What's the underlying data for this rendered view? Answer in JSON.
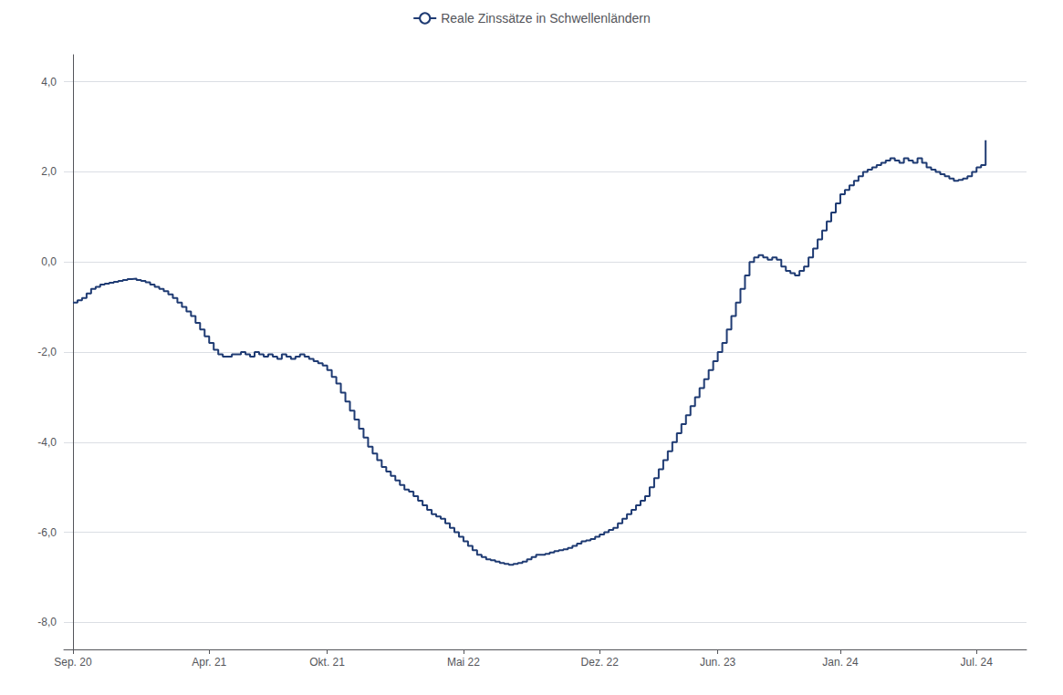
{
  "chart_data": {
    "type": "line",
    "line_style": "step",
    "legend": "top",
    "grid": true,
    "x": [
      0,
      1,
      2,
      3,
      4,
      5,
      6,
      7,
      8,
      9,
      10,
      11,
      12,
      13,
      14,
      15,
      16,
      17,
      18,
      19,
      20,
      21,
      22,
      23,
      24,
      25,
      26,
      27,
      28,
      29,
      30,
      31,
      32,
      33,
      34,
      35,
      36,
      37,
      38,
      39,
      40,
      41,
      42,
      43,
      44,
      45,
      46,
      47,
      48,
      49,
      50,
      51,
      52,
      53,
      54,
      55,
      56,
      57,
      58,
      59,
      60,
      61,
      62,
      63,
      64,
      65,
      66,
      67,
      68,
      69,
      70,
      71,
      72,
      73,
      74,
      75,
      76,
      77,
      78,
      79,
      80,
      81,
      82,
      83,
      84,
      85,
      86,
      87,
      88,
      89,
      90,
      91,
      92,
      93,
      94,
      95,
      96,
      97,
      98,
      99,
      100,
      101,
      102,
      103,
      104,
      105,
      106,
      107,
      108,
      109,
      110,
      111,
      112,
      113,
      114,
      115,
      116,
      117,
      118,
      119,
      120,
      121,
      122,
      123,
      124,
      125,
      126,
      127,
      128,
      129,
      130,
      131,
      132,
      133,
      134,
      135,
      136,
      137,
      138,
      139,
      140,
      141,
      142,
      143,
      144,
      145,
      146,
      147,
      148,
      149,
      150,
      151,
      152,
      153,
      154,
      155,
      156,
      157,
      158,
      159,
      160,
      161,
      162,
      163,
      164,
      165,
      166,
      167,
      168,
      169,
      170,
      171,
      172,
      173,
      174,
      175,
      176,
      177,
      178,
      179,
      180,
      181,
      182,
      183,
      184,
      185,
      186,
      187,
      188,
      189,
      190,
      191,
      192,
      193,
      194,
      195,
      196,
      197,
      198,
      199,
      200,
      201
    ],
    "series": [
      {
        "name": "Reale Zinssätze in Schwellenländern",
        "color": "#1f3b73",
        "values": [
          -0.9,
          -0.85,
          -0.8,
          -0.7,
          -0.6,
          -0.55,
          -0.5,
          -0.48,
          -0.46,
          -0.44,
          -0.42,
          -0.4,
          -0.38,
          -0.37,
          -0.4,
          -0.42,
          -0.45,
          -0.5,
          -0.55,
          -0.6,
          -0.65,
          -0.72,
          -0.8,
          -0.9,
          -1.0,
          -1.1,
          -1.2,
          -1.35,
          -1.5,
          -1.65,
          -1.8,
          -1.95,
          -2.05,
          -2.1,
          -2.1,
          -2.05,
          -2.05,
          -2.0,
          -2.05,
          -2.1,
          -2.0,
          -2.05,
          -2.1,
          -2.05,
          -2.1,
          -2.15,
          -2.05,
          -2.1,
          -2.15,
          -2.1,
          -2.05,
          -2.1,
          -2.15,
          -2.2,
          -2.25,
          -2.3,
          -2.4,
          -2.55,
          -2.7,
          -2.9,
          -3.1,
          -3.3,
          -3.5,
          -3.7,
          -3.9,
          -4.1,
          -4.25,
          -4.4,
          -4.55,
          -4.65,
          -4.75,
          -4.85,
          -4.95,
          -5.05,
          -5.1,
          -5.2,
          -5.3,
          -5.4,
          -5.5,
          -5.6,
          -5.65,
          -5.7,
          -5.8,
          -5.9,
          -6.0,
          -6.1,
          -6.2,
          -6.3,
          -6.4,
          -6.5,
          -6.55,
          -6.6,
          -6.62,
          -6.65,
          -6.68,
          -6.7,
          -6.72,
          -6.7,
          -6.68,
          -6.65,
          -6.6,
          -6.55,
          -6.5,
          -6.5,
          -6.48,
          -6.45,
          -6.42,
          -6.4,
          -6.38,
          -6.35,
          -6.3,
          -6.25,
          -6.2,
          -6.18,
          -6.15,
          -6.1,
          -6.05,
          -6.0,
          -5.95,
          -5.9,
          -5.8,
          -5.7,
          -5.6,
          -5.5,
          -5.4,
          -5.3,
          -5.2,
          -5.0,
          -4.8,
          -4.6,
          -4.4,
          -4.2,
          -4.0,
          -3.8,
          -3.6,
          -3.4,
          -3.2,
          -3.0,
          -2.8,
          -2.6,
          -2.4,
          -2.2,
          -2.0,
          -1.8,
          -1.5,
          -1.2,
          -0.9,
          -0.6,
          -0.3,
          0.0,
          0.1,
          0.15,
          0.1,
          0.05,
          0.1,
          0.05,
          -0.1,
          -0.2,
          -0.25,
          -0.3,
          -0.2,
          -0.1,
          0.1,
          0.3,
          0.5,
          0.7,
          0.9,
          1.1,
          1.3,
          1.5,
          1.6,
          1.7,
          1.8,
          1.9,
          2.0,
          2.05,
          2.1,
          2.15,
          2.2,
          2.25,
          2.3,
          2.25,
          2.2,
          2.3,
          2.25,
          2.2,
          2.3,
          2.2,
          2.1,
          2.05,
          2.0,
          1.95,
          1.9,
          1.85,
          1.8,
          1.82,
          1.85,
          1.9,
          2.0,
          2.1,
          2.15,
          2.7
        ]
      }
    ],
    "xlim": [
      -2,
      210
    ],
    "xticks": [
      {
        "value": 0,
        "label": "Sep. 20"
      },
      {
        "value": 30,
        "label": "Apr. 21"
      },
      {
        "value": 56,
        "label": "Okt. 21"
      },
      {
        "value": 86,
        "label": "Mai 22"
      },
      {
        "value": 116,
        "label": "Dez. 22"
      },
      {
        "value": 142,
        "label": "Jun. 23"
      },
      {
        "value": 169,
        "label": "Jan. 24"
      },
      {
        "value": 199,
        "label": "Jul. 24"
      }
    ],
    "ylim": [
      -8.6,
      4.6
    ],
    "yticks": [
      {
        "value": -8.0,
        "label": "-8,0"
      },
      {
        "value": -6.0,
        "label": "-6,0"
      },
      {
        "value": -4.0,
        "label": "-4,0"
      },
      {
        "value": -2.0,
        "label": "-2,0"
      },
      {
        "value": 0.0,
        "label": "0,0"
      },
      {
        "value": 2.0,
        "label": "2,0"
      },
      {
        "value": 4.0,
        "label": "4,0"
      }
    ]
  }
}
